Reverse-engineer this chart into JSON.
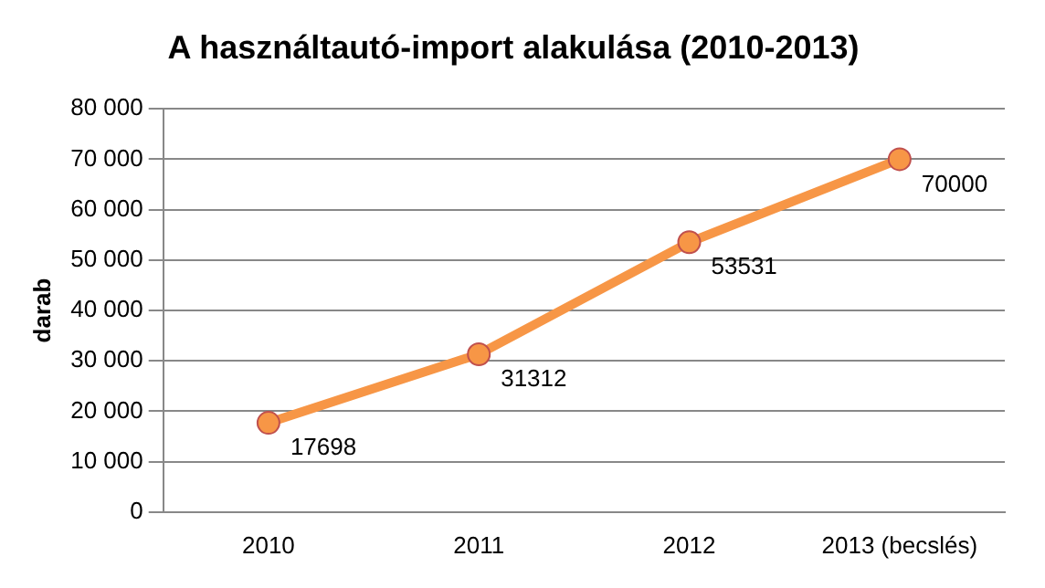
{
  "chart_data": {
    "type": "line",
    "title": "A használtautó-import alakulása (2010-2013)",
    "ylabel": "darab",
    "categories": [
      "2010",
      "2011",
      "2012",
      "2013 (becslés)"
    ],
    "series": [
      {
        "color": "#f79646",
        "values": [
          17698,
          31312,
          53531,
          70000
        ]
      }
    ],
    "ylim": [
      0,
      80000
    ],
    "yticks": [
      {
        "value": 0,
        "label": "0"
      },
      {
        "value": 10000,
        "label": "10 000"
      },
      {
        "value": 20000,
        "label": "20 000"
      },
      {
        "value": 30000,
        "label": "30 000"
      },
      {
        "value": 40000,
        "label": "40 000"
      },
      {
        "value": 50000,
        "label": "50 000"
      },
      {
        "value": 60000,
        "label": "60 000"
      },
      {
        "value": 70000,
        "label": "70 000"
      },
      {
        "value": 80000,
        "label": "80 000"
      }
    ],
    "grid": "y",
    "legend": false,
    "marker": "circle",
    "line_style": "solid",
    "data_labels": true
  }
}
